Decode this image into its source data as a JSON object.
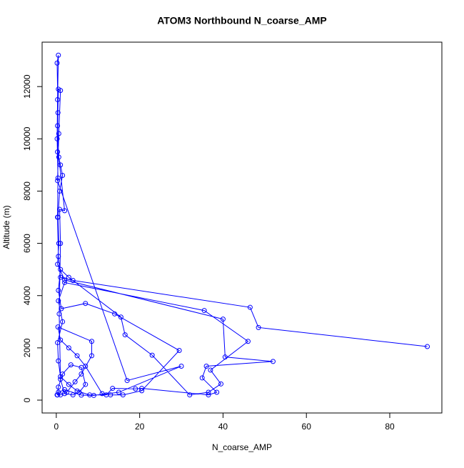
{
  "chart_data": {
    "type": "line",
    "title": "ATOM3 Northbound N_coarse_AMP",
    "x_label": "N_coarse_AMP",
    "y_label": "Altitude (m)",
    "color": "#0000ff",
    "markers": true,
    "x": [
      89,
      48.5,
      46.5,
      4,
      1,
      0.5,
      0.3,
      0.4,
      0.2,
      0.3,
      0.5,
      0.2,
      0.4,
      0.3,
      1,
      1.5,
      0.8,
      0.4,
      0.6,
      0.3,
      2,
      40,
      40.5,
      52,
      36,
      35,
      38.5,
      36.5,
      20.5,
      19,
      13.5,
      12,
      8,
      5,
      3,
      1,
      0.5,
      0.3,
      1.5,
      0.5,
      2,
      35.5,
      46,
      37,
      39.5,
      36.5,
      32,
      23,
      16.5,
      15.5,
      3,
      1,
      0.5,
      1.2,
      7,
      14,
      29.5,
      20.5,
      16,
      13,
      11,
      7,
      5,
      3,
      1,
      0.4,
      8.5,
      8.5,
      6,
      4.5,
      2.5,
      1,
      0.3,
      0.5,
      1.5,
      3.5,
      6,
      7,
      5.5,
      4,
      2,
      1,
      0.7,
      1,
      0.8,
      2,
      0.6,
      0.3,
      0.5,
      1,
      0.6,
      0.3,
      17,
      30,
      15,
      9,
      6,
      2,
      0.5,
      0.2
    ],
    "values": [
      2050,
      2780,
      3550,
      4580,
      4700,
      5500,
      7000,
      8500,
      10000,
      11500,
      13200,
      12900,
      11000,
      9500,
      9000,
      8600,
      8000,
      7000,
      6000,
      5200,
      4600,
      3100,
      1650,
      1480,
      1300,
      850,
      300,
      200,
      450,
      430,
      450,
      200,
      200,
      350,
      600,
      900,
      1500,
      2200,
      3000,
      3800,
      4500,
      3430,
      2250,
      1150,
      620,
      300,
      200,
      1720,
      2500,
      3180,
      4700,
      5000,
      4200,
      3500,
      3700,
      3300,
      1900,
      360,
      200,
      200,
      250,
      1300,
      1700,
      2000,
      2300,
      2800,
      2250,
      1700,
      1000,
      700,
      300,
      200,
      200,
      500,
      1000,
      1350,
      1250,
      600,
      300,
      200,
      250,
      800,
      3300,
      6000,
      7300,
      7250,
      9300,
      10500,
      11900,
      11850,
      10200,
      8400,
      750,
      1300,
      300,
      180,
      190,
      400,
      300,
      200
    ],
    "xlim": [
      -3.4,
      92.5
    ],
    "ylim": [
      -492,
      13700
    ],
    "xticks": [
      0,
      20,
      40,
      60,
      80
    ],
    "yticks": [
      0,
      2000,
      4000,
      6000,
      8000,
      10000,
      12000
    ]
  }
}
